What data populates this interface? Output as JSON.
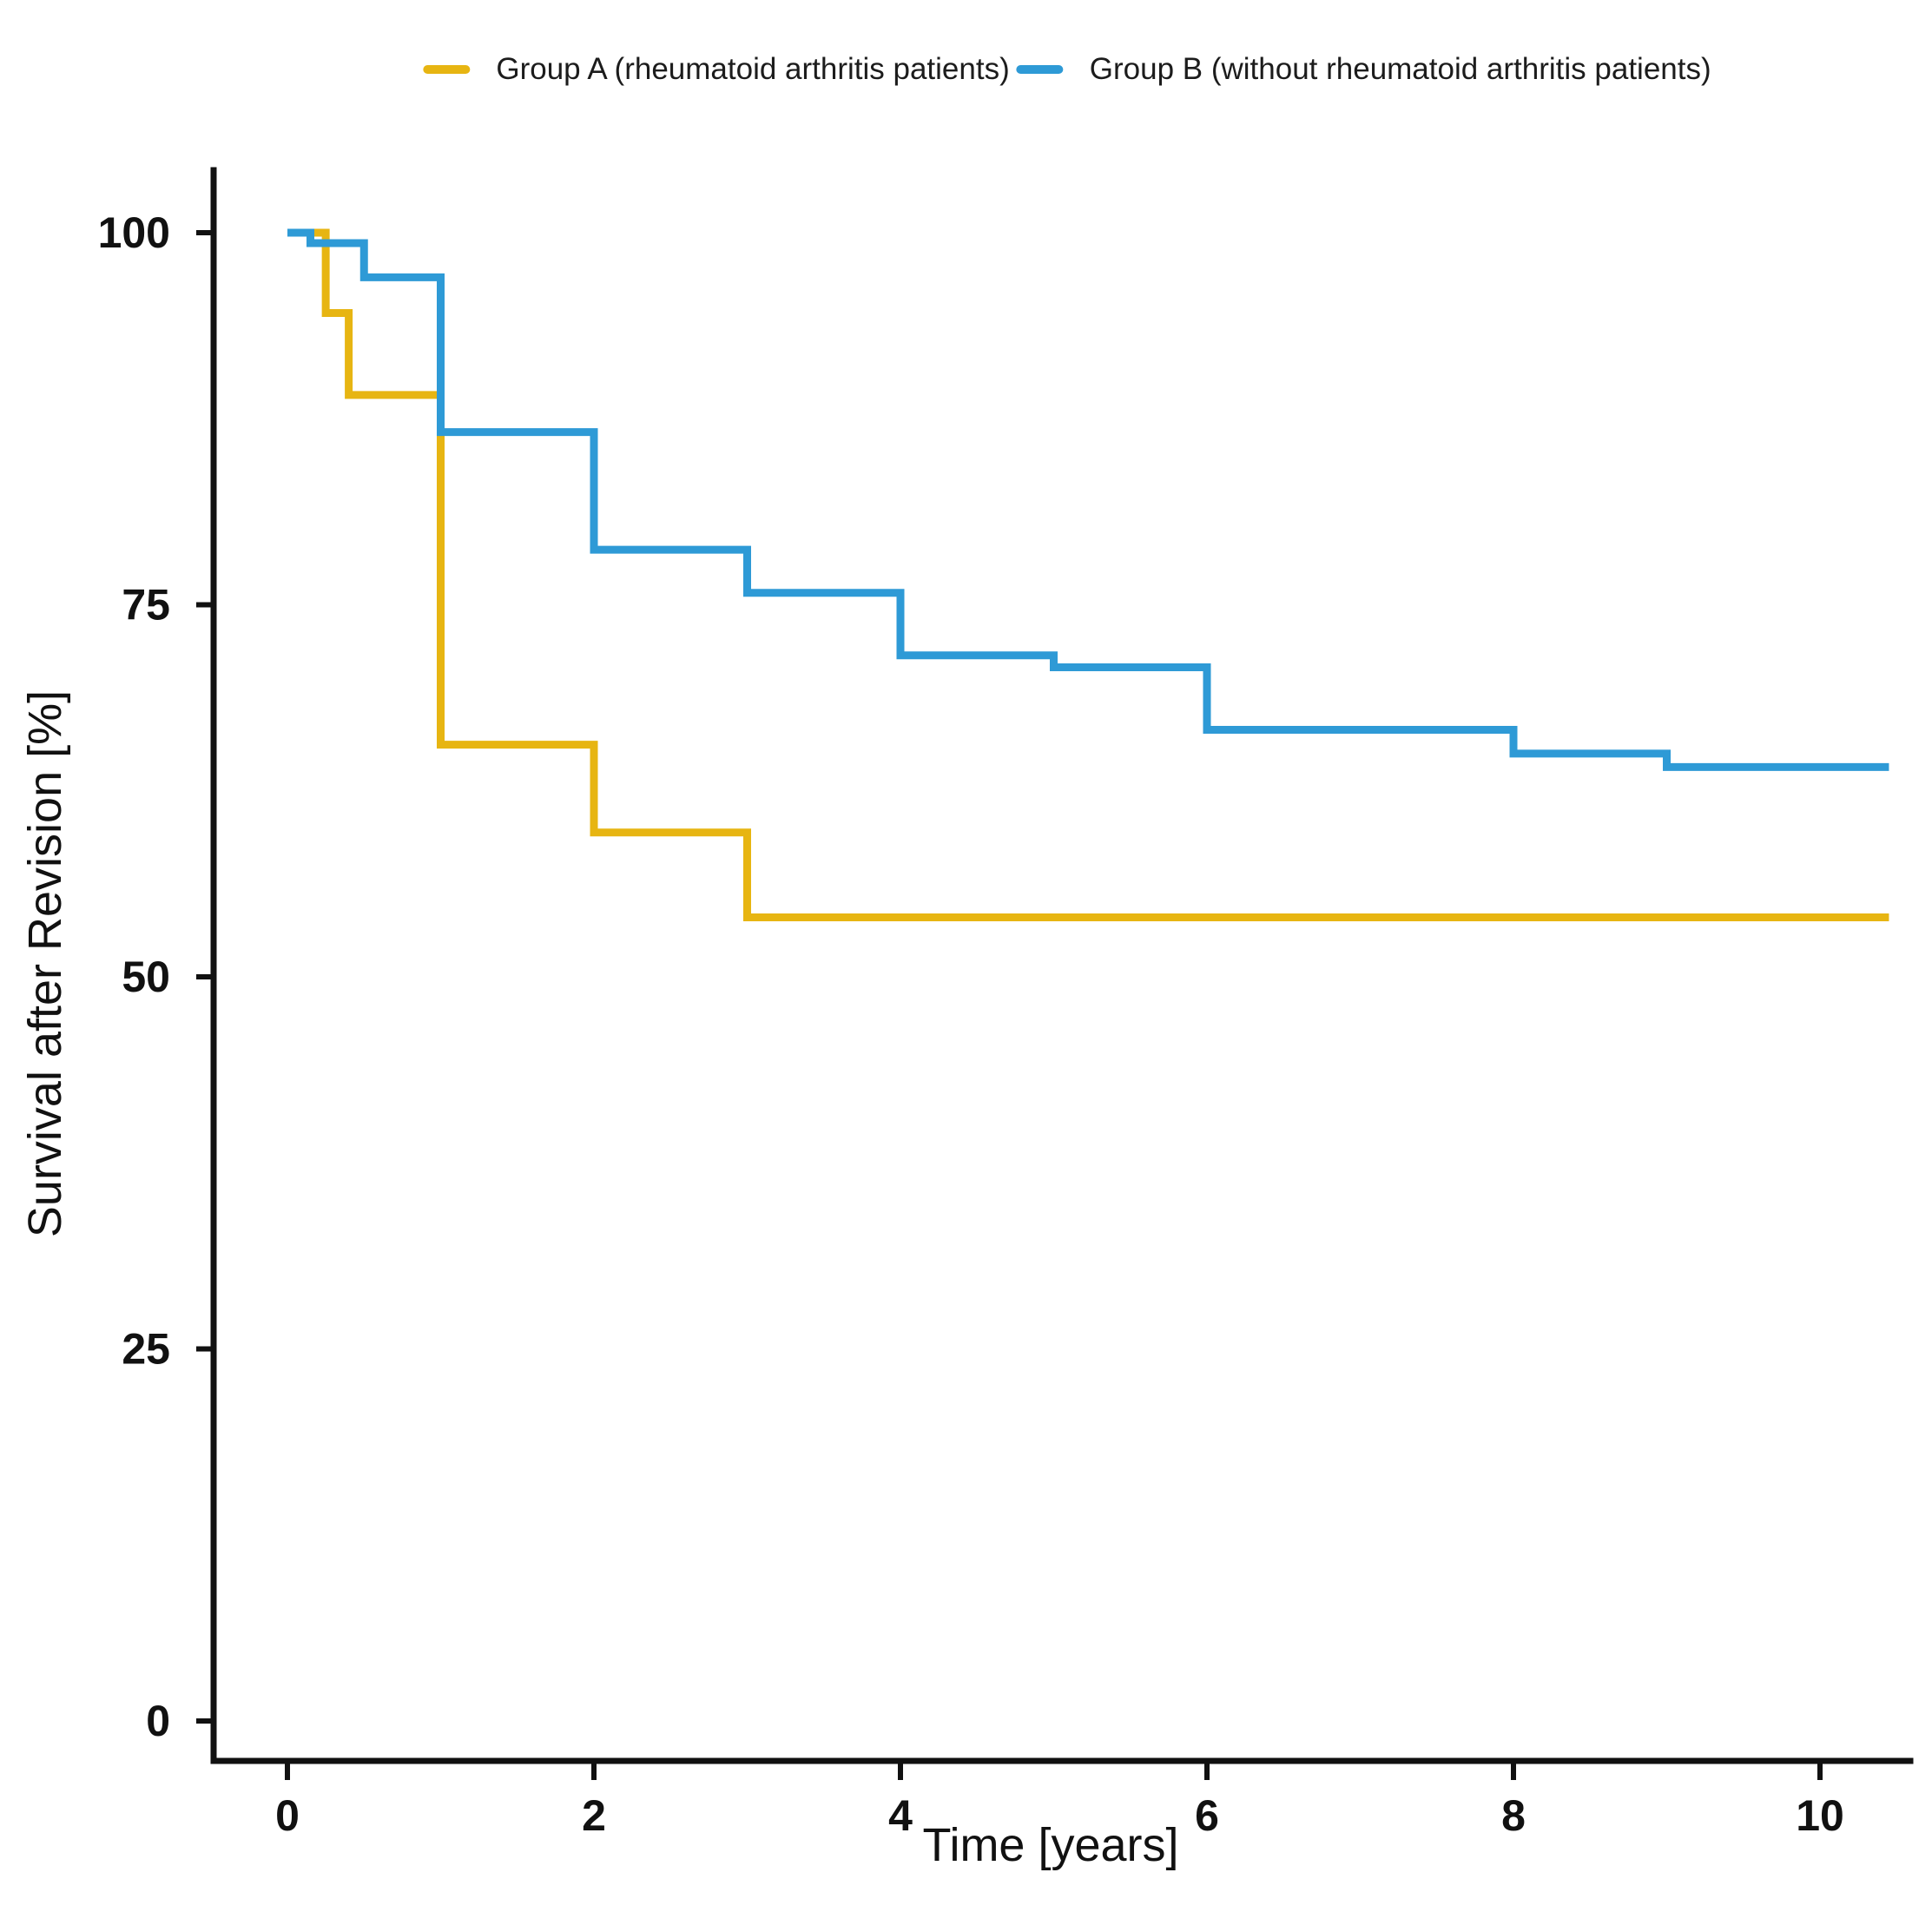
{
  "figure": {
    "background": "#ffffff"
  },
  "legend": {
    "position": "top",
    "items": [
      {
        "label": "Group A (rheumatoid arthritis patients)",
        "color": "#E7B512"
      },
      {
        "label": "Group B (without rheumatoid arthritis patients)",
        "color": "#2E9AD6"
      }
    ]
  },
  "axes": {
    "color": "#111111",
    "x_tick_labels": [
      "0",
      "2",
      "4",
      "6",
      "8",
      "10"
    ],
    "y_tick_labels": [
      "0",
      "25",
      "50",
      "75",
      "100"
    ]
  },
  "chart_data": {
    "type": "line",
    "subtype": "kaplan-meier-step",
    "title": "",
    "xlabel": "Time [years]",
    "ylabel": "Survival after Revision [%]",
    "xlim": [
      0,
      10.5
    ],
    "ylim": [
      0,
      100
    ],
    "x_ticks": [
      0,
      2,
      4,
      6,
      8,
      10
    ],
    "y_ticks": [
      0,
      25,
      50,
      75,
      100
    ],
    "grid": false,
    "legend_position": "top",
    "series": [
      {
        "name": "Group A (rheumatoid arthritis patients)",
        "color": "#E7B512",
        "steps": [
          [
            0,
            100
          ],
          [
            0.25,
            94.6
          ],
          [
            0.4,
            89.1
          ],
          [
            1,
            65.6
          ],
          [
            2,
            59.7
          ],
          [
            3,
            54.0
          ],
          [
            10.45,
            54.0
          ]
        ]
      },
      {
        "name": "Group B (without rheumatoid arthritis patients)",
        "color": "#2E9AD6",
        "steps": [
          [
            0,
            100
          ],
          [
            0.15,
            99.3
          ],
          [
            0.5,
            97.0
          ],
          [
            1,
            86.6
          ],
          [
            2,
            78.7
          ],
          [
            3,
            75.8
          ],
          [
            4,
            71.6
          ],
          [
            5,
            70.8
          ],
          [
            6,
            66.6
          ],
          [
            8,
            65.0
          ],
          [
            9,
            64.1
          ],
          [
            10.45,
            64.1
          ]
        ]
      }
    ]
  }
}
